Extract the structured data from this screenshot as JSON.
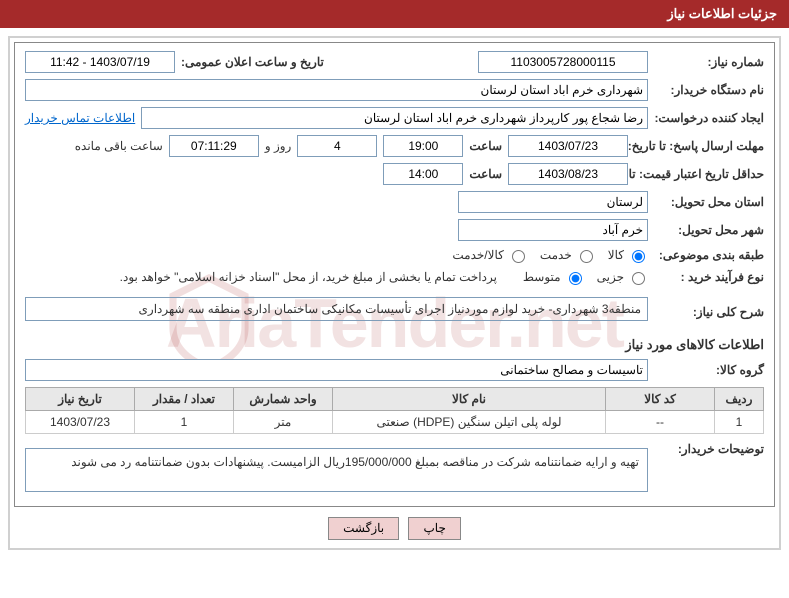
{
  "header": {
    "title": "جزئیات اطلاعات نیاز"
  },
  "fields": {
    "need_no_label": "شماره نیاز:",
    "need_no": "1103005728000115",
    "announce_label": "تاریخ و ساعت اعلان عمومی:",
    "announce": "1403/07/19 - 11:42",
    "buyer_org_label": "نام دستگاه خریدار:",
    "buyer_org": "شهرداری خرم اباد استان لرستان",
    "requester_label": "ایجاد کننده درخواست:",
    "requester": "رضا شجاع پور کارپرداز شهرداری خرم اباد استان لرستان",
    "contact_link": "اطلاعات تماس خریدار",
    "reply_deadline_label": "مهلت ارسال پاسخ: تا تاریخ:",
    "reply_date": "1403/07/23",
    "time_label": "ساعت",
    "reply_time": "19:00",
    "days": "4",
    "days_and": "روز و",
    "remaining": "07:11:29",
    "remaining_label": "ساعت باقی مانده",
    "validity_label": "حداقل تاریخ اعتبار قیمت: تا تاریخ:",
    "validity_date": "1403/08/23",
    "validity_time": "14:00",
    "delivery_prov_label": "استان محل تحویل:",
    "delivery_prov": "لرستان",
    "delivery_city_label": "شهر محل تحویل:",
    "delivery_city": "خرم آباد",
    "category_label": "طبقه بندی موضوعی:",
    "cat_goods": "کالا",
    "cat_service": "خدمت",
    "cat_both": "کالا/خدمت",
    "process_label": "نوع فرآیند خرید :",
    "proc_small": "جزیی",
    "proc_medium": "متوسط",
    "payment_note": "پرداخت تمام یا بخشی از مبلغ خرید، از محل \"اسناد خزانه اسلامی\" خواهد بود.",
    "need_desc_label": "شرح کلی نیاز:",
    "need_desc": "منطقه3 شهرداری- خرید لوازم موردنیاز اجرای تأسیسات مکانیکی ساختمان اداری منطقه سه شهرداری",
    "goods_info_title": "اطلاعات کالاهای مورد نیاز",
    "goods_group_label": "گروه کالا:",
    "goods_group": "تاسیسات و مصالح ساختمانی",
    "remarks_label": "توضیحات خریدار:",
    "remarks": "تهیه و ارایه ضمانتنامه شرکت در مناقصه بمبلغ 195/000/000ریال الزامیست. پیشنهادات بدون ضمانتنامه رد می شوند"
  },
  "table": {
    "headers": {
      "row": "ردیف",
      "code": "کد کالا",
      "name": "نام کالا",
      "unit": "واحد شمارش",
      "qty": "تعداد / مقدار",
      "date": "تاریخ نیاز"
    },
    "rows": [
      {
        "row": "1",
        "code": "--",
        "name": "لوله پلی اتیلن سنگین (HDPE) صنعتی",
        "unit": "متر",
        "qty": "1",
        "date": "1403/07/23"
      }
    ]
  },
  "buttons": {
    "print": "چاپ",
    "back": "بازگشت"
  },
  "watermark": "AriaTender.net"
}
